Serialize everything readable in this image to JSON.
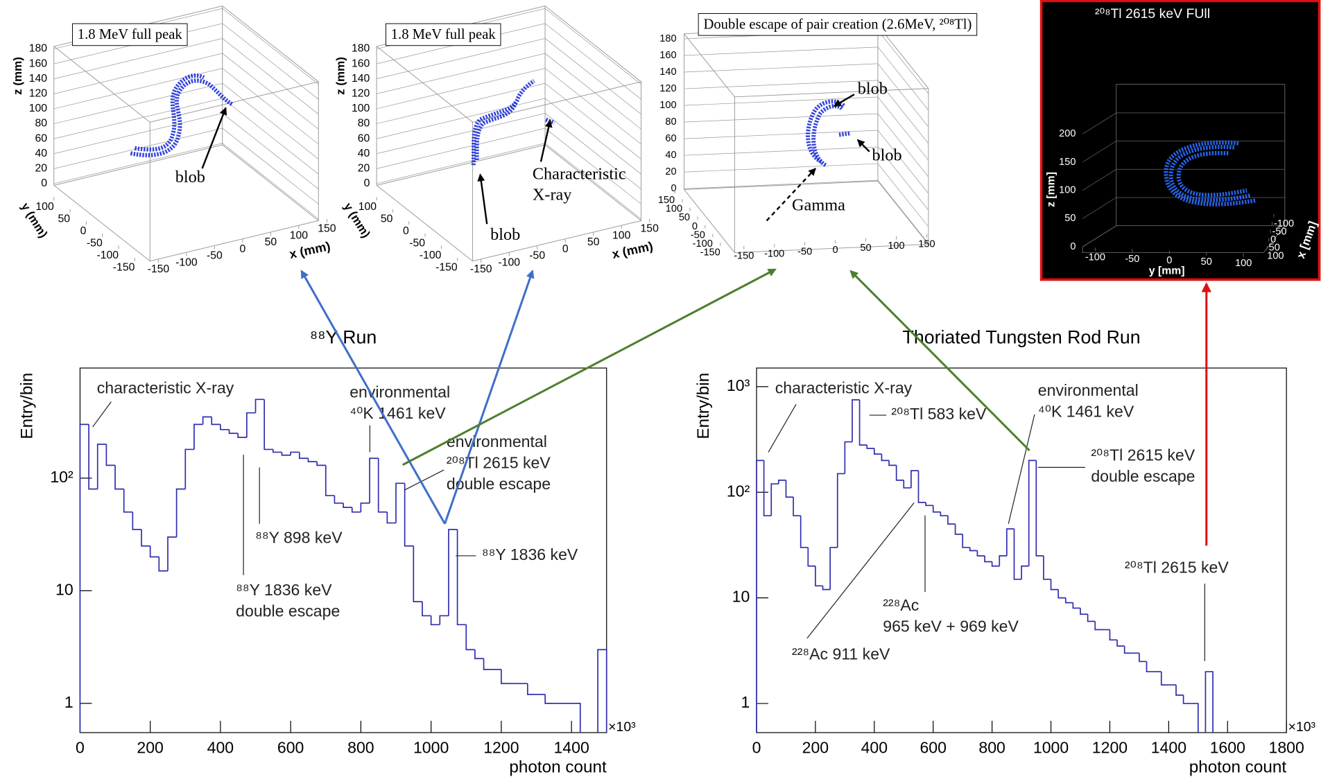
{
  "chart_data": [
    {
      "type": "scatter3d",
      "title": "1.8 MeV full peak",
      "zlabel": "z (mm)",
      "ylabel": "y (mm)",
      "xlabel": "x (mm)",
      "zticks": [
        0,
        20,
        40,
        60,
        80,
        100,
        120,
        140,
        160,
        180
      ],
      "yticks": [
        100,
        50,
        0,
        -50,
        -100,
        -150
      ],
      "xticks": [
        -150,
        -100,
        -50,
        0,
        50,
        100,
        150
      ],
      "annotations": [
        {
          "lines": [
            "blob"
          ]
        }
      ]
    },
    {
      "type": "scatter3d",
      "title": "1.8 MeV full peak",
      "zlabel": "z (mm)",
      "ylabel": "y (mm)",
      "xlabel": "x (mm)",
      "zticks": [
        0,
        20,
        40,
        60,
        80,
        100,
        120,
        140,
        160,
        180
      ],
      "yticks": [
        100,
        50,
        0,
        -50,
        -100,
        -150
      ],
      "xticks": [
        -150,
        -100,
        -50,
        0,
        50,
        100,
        150
      ],
      "annotations": [
        {
          "lines": [
            "blob"
          ]
        },
        {
          "lines": [
            "Characteristic",
            "X-ray"
          ]
        }
      ]
    },
    {
      "type": "scatter3d",
      "title": "Double escape of pair creation (2.6MeV, ²⁰⁸Tl)",
      "zticks": [
        0,
        20,
        40,
        60,
        80,
        100,
        120,
        140,
        160,
        180
      ],
      "yticks": [
        150,
        100,
        50,
        0,
        -50,
        -100,
        -150
      ],
      "xticks": [
        -150,
        -100,
        -50,
        0,
        50,
        100,
        150
      ],
      "annotations": [
        {
          "lines": [
            "blob"
          ]
        },
        {
          "lines": [
            "blob"
          ]
        },
        {
          "lines": [
            "Gamma"
          ]
        }
      ]
    },
    {
      "type": "scatter3d",
      "title": "²⁰⁸Tl 2615 keV FUll",
      "zlabel": "z [mm]",
      "ylabel": "y [mm]",
      "xlabel": "x [mm]",
      "zticks": [
        0,
        50,
        100,
        150,
        200
      ],
      "yticks": [
        -100,
        -50,
        0,
        50,
        100
      ],
      "xticks": [
        -100,
        -50,
        0,
        50,
        100
      ],
      "annotations": []
    },
    {
      "type": "histogram",
      "title": "⁸⁸Y Run",
      "xlabel": "photon count",
      "ylabel": "Entry/bin",
      "x_multiplier": "×10³",
      "color": "#2e2eb0",
      "log_y": true,
      "xlim": [
        0,
        1500
      ],
      "ylim": [
        0.55,
        950
      ],
      "xticks": [
        0,
        200,
        400,
        600,
        800,
        1000,
        1200,
        1400
      ],
      "yticks": [
        1,
        10,
        {
          "value": 100,
          "label": "10²"
        }
      ],
      "bins": [
        0,
        25,
        50,
        75,
        100,
        125,
        150,
        175,
        200,
        225,
        250,
        275,
        300,
        325,
        350,
        375,
        400,
        425,
        450,
        475,
        500,
        525,
        550,
        575,
        600,
        625,
        650,
        675,
        700,
        725,
        750,
        775,
        800,
        825,
        850,
        875,
        900,
        925,
        950,
        975,
        1000,
        1025,
        1050,
        1075,
        1100,
        1125,
        1150,
        1175,
        1200,
        1225,
        1250,
        1275,
        1300,
        1325,
        1350,
        1375,
        1400,
        1425,
        1450,
        1475,
        1500
      ],
      "counts": [
        300,
        80,
        200,
        130,
        80,
        50,
        35,
        25,
        20,
        15,
        30,
        80,
        180,
        300,
        350,
        300,
        270,
        250,
        230,
        380,
        500,
        180,
        170,
        160,
        170,
        150,
        140,
        130,
        70,
        60,
        55,
        50,
        60,
        150,
        50,
        40,
        90,
        25,
        8,
        6,
        5,
        6,
        35,
        5,
        3,
        2.5,
        2,
        2,
        1.5,
        1.5,
        1.5,
        1.2,
        1.2,
        1,
        1,
        1,
        1,
        null,
        null,
        3
      ],
      "annotations": [
        {
          "lines": [
            "characteristic X-ray"
          ]
        },
        {
          "lines": [
            "environmental",
            "⁴⁰K 1461 keV"
          ]
        },
        {
          "lines": [
            "environmental",
            "²⁰⁸Tl 2615 keV",
            "double escape"
          ]
        },
        {
          "lines": [
            "⁸⁸Y 898 keV"
          ]
        },
        {
          "lines": [
            "⁸⁸Y 1836 keV",
            "double escape"
          ]
        },
        {
          "lines": [
            "⁸⁸Y 1836 keV"
          ]
        }
      ]
    },
    {
      "type": "histogram",
      "title": "Thoriated Tungsten Rod Run",
      "xlabel": "photon count",
      "ylabel": "Entry/bin",
      "x_multiplier": "×10³",
      "color": "#2e2eb0",
      "log_y": true,
      "xlim": [
        0,
        1800
      ],
      "ylim": [
        0.53,
        1500
      ],
      "xticks": [
        0,
        200,
        400,
        600,
        800,
        1000,
        1200,
        1400,
        1600,
        1800
      ],
      "yticks": [
        1,
        10,
        {
          "value": 100,
          "label": "10²"
        },
        {
          "value": 1000,
          "label": "10³"
        }
      ],
      "bins": [
        0,
        25,
        50,
        75,
        100,
        125,
        150,
        175,
        200,
        225,
        250,
        275,
        300,
        325,
        350,
        375,
        400,
        425,
        450,
        475,
        500,
        525,
        550,
        575,
        600,
        625,
        650,
        675,
        700,
        725,
        750,
        775,
        800,
        825,
        850,
        875,
        900,
        925,
        950,
        975,
        1000,
        1025,
        1050,
        1075,
        1100,
        1125,
        1150,
        1175,
        1200,
        1225,
        1250,
        1275,
        1300,
        1325,
        1350,
        1375,
        1400,
        1425,
        1450,
        1475,
        1500,
        1525,
        1550
      ],
      "counts": [
        200,
        60,
        120,
        130,
        90,
        60,
        30,
        20,
        13,
        12,
        30,
        150,
        300,
        750,
        280,
        260,
        230,
        200,
        180,
        130,
        110,
        160,
        80,
        75,
        65,
        60,
        50,
        40,
        30,
        28,
        25,
        22,
        20,
        25,
        45,
        15,
        20,
        200,
        25,
        15,
        12,
        10,
        9,
        8,
        7,
        6,
        5,
        5,
        4,
        3.5,
        3,
        3,
        2.5,
        2,
        2,
        1.5,
        1.5,
        1.2,
        1,
        1,
        null,
        2
      ],
      "annotations": [
        {
          "lines": [
            "characteristic X-ray"
          ]
        },
        {
          "lines": [
            "²⁰⁸Tl 583 keV"
          ]
        },
        {
          "lines": [
            "environmental",
            "⁴⁰K 1461 keV"
          ]
        },
        {
          "lines": [
            "²⁰⁸Tl 2615 keV",
            "double escape"
          ]
        },
        {
          "lines": [
            "²²⁸Ac",
            "965 keV + 969 keV"
          ]
        },
        {
          "lines": [
            "²²⁸Ac 911 keV"
          ]
        },
        {
          "lines": [
            "²⁰⁸Tl 2615 keV"
          ]
        }
      ]
    }
  ]
}
